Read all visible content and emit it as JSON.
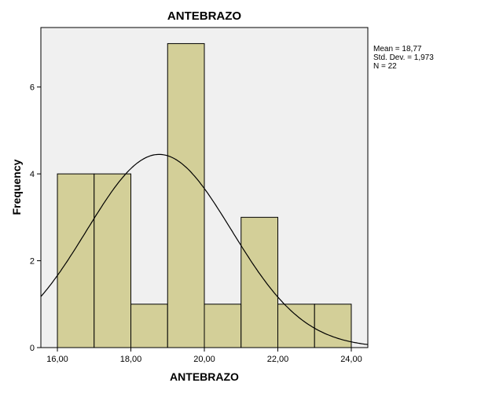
{
  "chart_data": {
    "type": "histogram",
    "title": "ANTEBRAZO",
    "xlabel": "ANTEBRAZO",
    "ylabel": "Frequency",
    "xlim": [
      15.55,
      24.45
    ],
    "ylim": [
      0,
      7.37
    ],
    "x_ticks": [
      16,
      18,
      20,
      22,
      24
    ],
    "x_tick_labels": [
      "16,00",
      "18,00",
      "20,00",
      "22,00",
      "24,00"
    ],
    "y_ticks": [
      0,
      2,
      4,
      6
    ],
    "y_tick_labels": [
      "0",
      "2",
      "4",
      "6"
    ],
    "bins": [
      {
        "start": 16,
        "end": 17,
        "count": 4
      },
      {
        "start": 17,
        "end": 18,
        "count": 4
      },
      {
        "start": 18,
        "end": 19,
        "count": 1
      },
      {
        "start": 19,
        "end": 20,
        "count": 7
      },
      {
        "start": 20,
        "end": 21,
        "count": 1
      },
      {
        "start": 21,
        "end": 22,
        "count": 3
      },
      {
        "start": 22,
        "end": 23,
        "count": 1
      },
      {
        "start": 23,
        "end": 24,
        "count": 1
      }
    ],
    "normal_curve": {
      "mean": 18.77,
      "std": 1.973,
      "n": 22
    },
    "grid": false,
    "colors": {
      "bar": "#d3cf98",
      "plot_background": "#f0f0f0",
      "outline": "#000000"
    }
  },
  "stats": {
    "mean": "Mean = 18,77",
    "std": "Std. Dev. = 1,973",
    "n": "N = 22"
  }
}
